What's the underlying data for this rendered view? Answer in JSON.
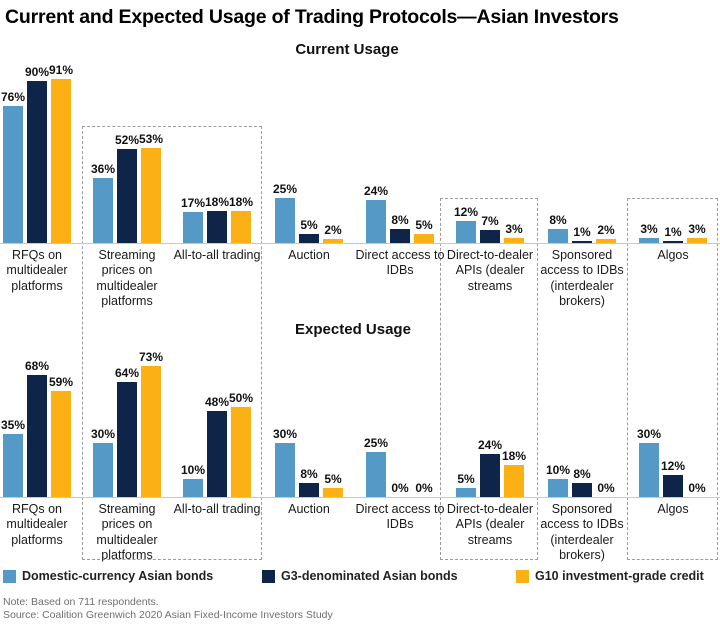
{
  "title": "Current and Expected Usage of Trading Protocols—Asian Investors",
  "note": "Note: Based on 711 respondents.",
  "source": "Source: Coalition Greenwich 2020 Asian Fixed-Income Investors Study",
  "colors": {
    "series": [
      "#5599C6",
      "#0E2549",
      "#FBB016"
    ],
    "axis_line": "#c8c8c8",
    "highlight_box_border": "#9c9c9c"
  },
  "legend": {
    "items": [
      {
        "label": "Domestic-currency Asian bonds",
        "color": "#5599C6"
      },
      {
        "label": "G3-denominated Asian bonds",
        "color": "#0E2549"
      },
      {
        "label": "G10 investment-grade credit",
        "color": "#FBB016"
      }
    ]
  },
  "annotations": {
    "dashed_boxes_around_categories": [
      [
        "Streaming prices on multidealer platforms",
        "All-to-all trading"
      ],
      [
        "Direct-to-dealer APIs (dealer streams"
      ],
      [
        "Algos"
      ]
    ]
  },
  "chart_data": [
    {
      "type": "bar",
      "title": "Current Usage",
      "unit": "%",
      "ylim": [
        0,
        100
      ],
      "grid": false,
      "legend_position": "bottom",
      "categories": [
        "RFQs on multidealer platforms",
        "Streaming prices on multidealer platforms",
        "All-to-all trading",
        "Auction",
        "Direct access to IDBs",
        "Direct-to-dealer APIs (dealer streams",
        "Sponsored access to IDBs (interdealer brokers)",
        "Algos"
      ],
      "series": [
        {
          "name": "Domestic-currency Asian bonds",
          "values": [
            76,
            36,
            17,
            25,
            24,
            12,
            8,
            3
          ]
        },
        {
          "name": "G3-denominated Asian bonds",
          "values": [
            90,
            52,
            18,
            5,
            8,
            7,
            1,
            1
          ]
        },
        {
          "name": "G10 investment-grade credit",
          "values": [
            91,
            53,
            18,
            2,
            5,
            3,
            2,
            3
          ]
        }
      ]
    },
    {
      "type": "bar",
      "title": "Expected Usage",
      "unit": "%",
      "ylim": [
        0,
        100
      ],
      "grid": false,
      "legend_position": "bottom",
      "categories": [
        "RFQs on multidealer platforms",
        "Streaming prices on multidealer platforms",
        "All-to-all trading",
        "Auction",
        "Direct access to IDBs",
        "Direct-to-dealer APIs (dealer streams",
        "Sponsored access to IDBs (interdealer brokers)",
        "Algos"
      ],
      "series": [
        {
          "name": "Domestic-currency Asian bonds",
          "values": [
            35,
            30,
            10,
            30,
            25,
            5,
            10,
            30
          ]
        },
        {
          "name": "G3-denominated Asian bonds",
          "values": [
            68,
            64,
            48,
            8,
            0,
            24,
            8,
            12
          ]
        },
        {
          "name": "G10 investment-grade credit",
          "values": [
            59,
            73,
            50,
            5,
            0,
            18,
            0,
            0
          ]
        }
      ]
    }
  ]
}
